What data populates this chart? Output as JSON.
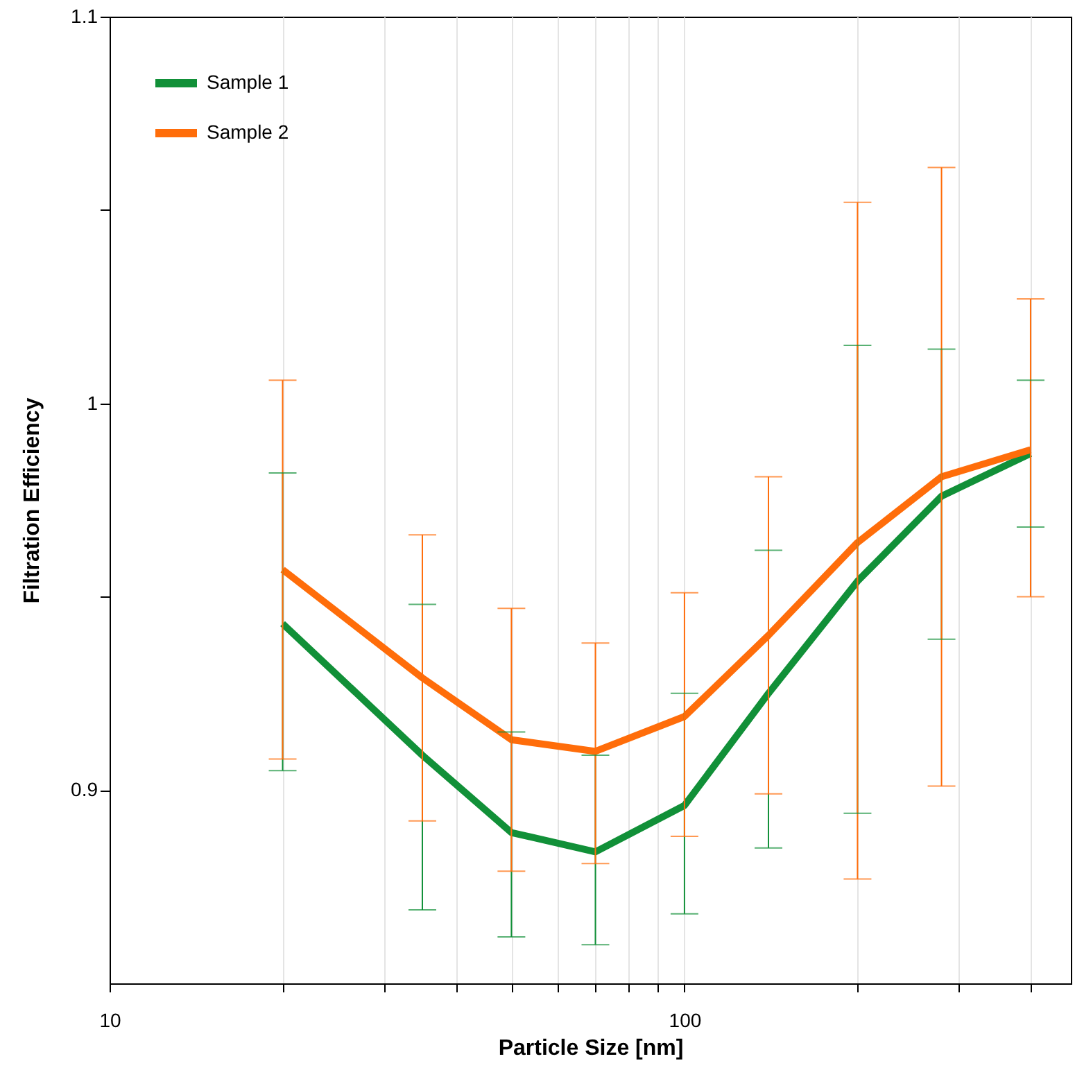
{
  "chart_data": {
    "type": "line",
    "xlabel": "Particle Size [nm]",
    "ylabel": "Filtration Efficiency",
    "x": [
      20,
      35,
      50,
      70,
      100,
      140,
      200,
      280,
      400
    ],
    "series": [
      {
        "name": "Sample 1",
        "color": "#119038",
        "values": [
          0.943,
          0.909,
          0.889,
          0.884,
          0.896,
          0.925,
          0.954,
          0.976,
          0.987
        ],
        "errors": [
          [
            0.905,
            0.982
          ],
          [
            0.869,
            0.948
          ],
          [
            0.862,
            0.915
          ],
          [
            0.86,
            0.909
          ],
          [
            0.868,
            0.925
          ],
          [
            0.885,
            0.962
          ],
          [
            0.894,
            1.015
          ],
          [
            0.939,
            1.014
          ],
          [
            0.968,
            1.006
          ]
        ]
      },
      {
        "name": "Sample 2",
        "color": "#ff6d0a",
        "values": [
          0.957,
          0.929,
          0.913,
          0.91,
          0.919,
          0.94,
          0.964,
          0.981,
          0.988
        ],
        "errors": [
          [
            0.908,
            1.006
          ],
          [
            0.892,
            0.966
          ],
          [
            0.879,
            0.947
          ],
          [
            0.881,
            0.938
          ],
          [
            0.888,
            0.951
          ],
          [
            0.899,
            0.981
          ],
          [
            0.877,
            1.052
          ],
          [
            0.901,
            1.061
          ],
          [
            0.95,
            1.027
          ]
        ]
      }
    ],
    "log": "x",
    "xlim": [
      10,
      470
    ],
    "xticks": [
      10,
      {
        "value": 20,
        "label": null
      },
      {
        "value": 30,
        "label": null
      },
      {
        "value": 40,
        "label": null
      },
      {
        "value": 50,
        "label": null
      },
      {
        "value": 60,
        "label": null
      },
      {
        "value": 70,
        "label": null
      },
      {
        "value": 80,
        "label": null
      },
      {
        "value": 90,
        "label": null
      },
      100,
      {
        "value": 200,
        "label": null
      },
      {
        "value": 300,
        "label": null
      },
      {
        "value": 400,
        "label": null
      }
    ],
    "ylim": [
      0.85,
      1.1
    ],
    "yticks": [
      0.9,
      {
        "value": 0.95,
        "label": null
      },
      1,
      {
        "value": 1.05,
        "label": null
      },
      1.1
    ],
    "grid": "x",
    "legend": "top left",
    "line_style": "solid",
    "marker": "none"
  }
}
